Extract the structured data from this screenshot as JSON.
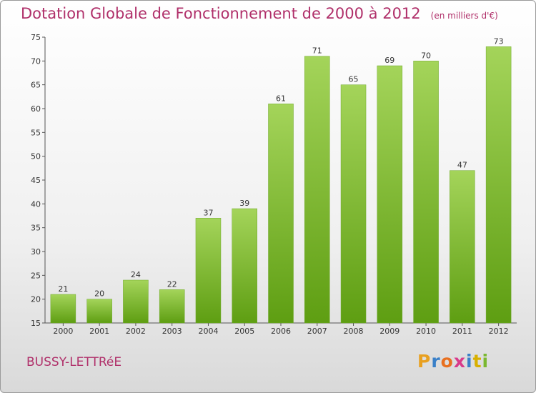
{
  "title": "Dotation Globale de Fonctionnement de 2000 à 2012",
  "unit_note": "(en milliers d'€)",
  "town": "BUSSY-LETTRéE",
  "logo": {
    "letters": [
      "P",
      "r",
      "o",
      "x",
      "i",
      "t",
      "i"
    ],
    "colors": [
      "#e8a020",
      "#3a80c8",
      "#e87020",
      "#d83a8a",
      "#3a80c8",
      "#d8b000",
      "#7ab830"
    ]
  },
  "colors": {
    "bar_top": "#a4d45a",
    "bar_bottom": "#5e9e12",
    "title": "#b0306a"
  },
  "chart_data": {
    "type": "bar",
    "title": "Dotation Globale de Fonctionnement de 2000 à 2012",
    "categories": [
      "2000",
      "2001",
      "2002",
      "2003",
      "2004",
      "2005",
      "2006",
      "2007",
      "2008",
      "2009",
      "2010",
      "2011",
      "2012"
    ],
    "values": [
      21,
      20,
      24,
      22,
      37,
      39,
      61,
      71,
      65,
      69,
      70,
      47,
      73
    ],
    "ylim": [
      15,
      75
    ],
    "yticks": [
      15,
      20,
      25,
      30,
      35,
      40,
      45,
      50,
      55,
      60,
      65,
      70,
      75
    ],
    "xlabel": "",
    "ylabel": "",
    "grid": false,
    "show_value_labels": true
  }
}
